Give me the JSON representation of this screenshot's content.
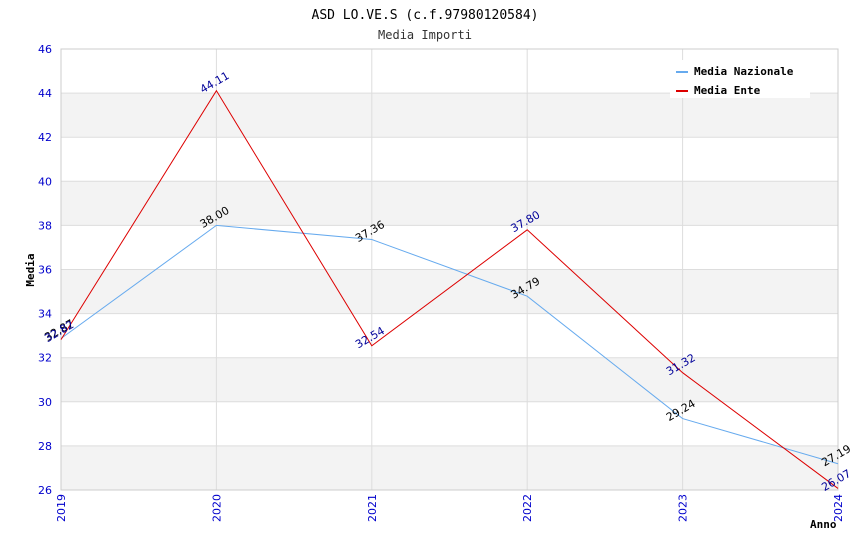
{
  "chart_data": {
    "type": "line",
    "title": "ASD LO.VE.S (c.f.97980120584)",
    "subtitle": "Media Importi",
    "xlabel": "Anno",
    "ylabel": "Media",
    "categories": [
      "2019",
      "2020",
      "2021",
      "2022",
      "2023",
      "2024"
    ],
    "ylim": [
      26,
      46
    ],
    "yticks": [
      26,
      28,
      30,
      32,
      34,
      36,
      38,
      40,
      42,
      44,
      46
    ],
    "grid": true,
    "legend_position": "top-right",
    "series": [
      {
        "name": "Media Nazionale",
        "color": "#66aaee",
        "label_color": "#000000",
        "values": [
          32.87,
          38.0,
          37.36,
          34.79,
          29.24,
          27.19
        ],
        "labels": [
          "32.87",
          "38.00",
          "37.36",
          "34.79",
          "29.24",
          "27.19"
        ]
      },
      {
        "name": "Media Ente",
        "color": "#dd0000",
        "label_color": "#000099",
        "values": [
          32.82,
          44.11,
          32.54,
          37.8,
          31.32,
          26.07
        ],
        "labels": [
          "32.82",
          "44.11",
          "32.54",
          "37.80",
          "31.32",
          "26.07"
        ]
      }
    ]
  }
}
